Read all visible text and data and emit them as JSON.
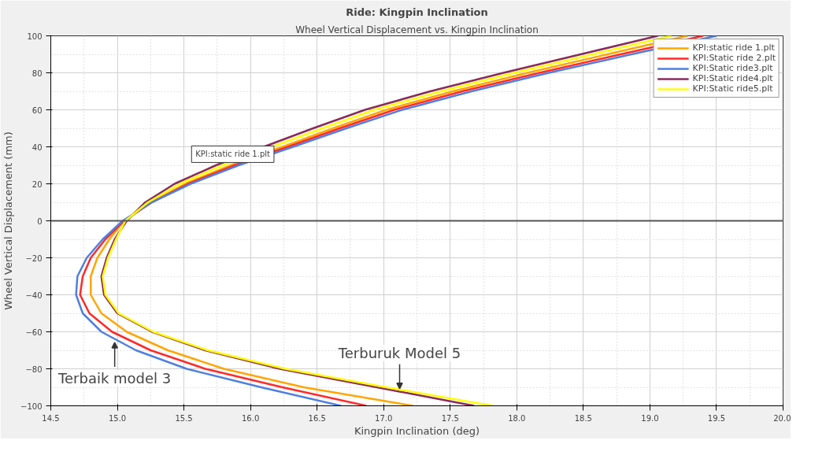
{
  "chart_data": {
    "type": "line",
    "title": "Ride: Kingpin Inclination",
    "subtitle": "Wheel Vertical Displacement vs. Kingpin Inclination",
    "xlabel": "Kingpin Inclination (deg)",
    "ylabel": "Wheel Vertical Displacement (mm)",
    "series": [
      {
        "name": "KPI:static ride 1.plt",
        "color": "#ffa500",
        "values": [
          -100,
          -90,
          -80,
          -70,
          -60,
          -50,
          -40,
          -30,
          -20,
          -10,
          0,
          10,
          20,
          30,
          40,
          50,
          60,
          70,
          80,
          90,
          100
        ],
        "x": [
          17.22,
          16.4,
          15.8,
          15.38,
          15.07,
          14.88,
          14.8,
          14.8,
          14.85,
          14.94,
          15.05,
          15.25,
          15.51,
          15.85,
          16.24,
          16.62,
          17.02,
          17.52,
          18.08,
          18.68,
          19.28
        ]
      },
      {
        "name": "KPI:Static ride 2.plt",
        "color": "#ff2a2a",
        "values": [
          -100,
          -90,
          -80,
          -70,
          -60,
          -50,
          -40,
          -30,
          -20,
          -10,
          0,
          10,
          20,
          30,
          40,
          50,
          60,
          70,
          80,
          90,
          100
        ],
        "x": [
          16.87,
          16.24,
          15.66,
          15.25,
          14.96,
          14.79,
          14.72,
          14.74,
          14.8,
          14.91,
          15.05,
          15.26,
          15.53,
          15.88,
          16.28,
          16.67,
          17.08,
          17.59,
          18.17,
          18.78,
          19.4
        ]
      },
      {
        "name": "KPI:Static ride3.plt",
        "color": "#4f7fe0",
        "values": [
          -100,
          -90,
          -80,
          -70,
          -60,
          -50,
          -40,
          -30,
          -20,
          -10,
          0,
          10,
          20,
          30,
          40,
          50,
          60,
          70,
          80,
          90,
          100
        ],
        "x": [
          16.68,
          16.08,
          15.52,
          15.14,
          14.88,
          14.74,
          14.69,
          14.7,
          14.77,
          14.89,
          15.04,
          15.26,
          15.55,
          15.91,
          16.32,
          16.72,
          17.14,
          17.66,
          18.24,
          18.86,
          19.5
        ]
      },
      {
        "name": "KPI:Static ride4.plt",
        "color": "#8b2a5e",
        "values": [
          -100,
          -90,
          -80,
          -70,
          -60,
          -50,
          -40,
          -30,
          -20,
          -10,
          0,
          10,
          20,
          30,
          40,
          50,
          60,
          70,
          80,
          90,
          100
        ],
        "x": [
          17.68,
          16.95,
          16.22,
          15.66,
          15.26,
          15.0,
          14.9,
          14.88,
          14.92,
          14.98,
          15.07,
          15.21,
          15.43,
          15.74,
          16.1,
          16.47,
          16.86,
          17.35,
          17.9,
          18.48,
          19.06
        ]
      },
      {
        "name": "KPI:Static ride5.plt",
        "color": "#ffff00",
        "values": [
          -100,
          -90,
          -80,
          -70,
          -60,
          -50,
          -40,
          -30,
          -20,
          -10,
          0,
          10,
          20,
          30,
          40,
          50,
          60,
          70,
          80,
          90,
          100
        ],
        "x": [
          17.82,
          17.02,
          16.26,
          15.68,
          15.27,
          15.01,
          14.91,
          14.89,
          14.93,
          14.99,
          15.06,
          15.23,
          15.47,
          15.79,
          16.16,
          16.54,
          16.93,
          17.43,
          17.98,
          18.57,
          19.16
        ]
      }
    ],
    "xlim": [
      14.5,
      20.0
    ],
    "ylim": [
      -100,
      100
    ],
    "xticks": [
      14.5,
      {
        "value": 15,
        "label": "15.0"
      },
      15.5,
      {
        "value": 16,
        "label": "16.0"
      },
      16.5,
      {
        "value": 17,
        "label": "17.0"
      },
      17.5,
      {
        "value": 18,
        "label": "18.0"
      },
      18.5,
      {
        "value": 19,
        "label": "19.0"
      },
      19.5,
      {
        "value": 20,
        "label": "20.0"
      }
    ],
    "yticks": [
      -100,
      -80,
      -60,
      -40,
      -20,
      0,
      20,
      40,
      60,
      80,
      100
    ],
    "ref_lines": [
      {
        "axis": "y",
        "value": 0,
        "color": "#555555"
      }
    ],
    "annotations": [
      {
        "text": "KPI:static ride 1.plt",
        "x": 16.2,
        "y": 36
      },
      {
        "text": "Terbaik model 3",
        "x": 14.98,
        "y": -64.5
      },
      {
        "text": "Terburuk Model 5",
        "x": 17.12,
        "y": -92
      }
    ],
    "grid": true,
    "legend": "top right",
    "line_style": "solid",
    "marker": "none"
  }
}
